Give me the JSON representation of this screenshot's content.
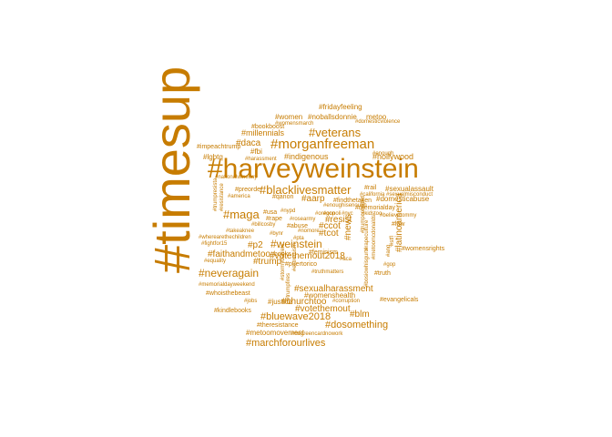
{
  "color": "#c77c00",
  "words": [
    {
      "text": "#timesup",
      "size": 56,
      "rotate": true
    },
    {
      "text": "#harveyweinstein",
      "size": 30
    },
    {
      "text": "#morganfreeman",
      "size": 15
    },
    {
      "text": "#veterans",
      "size": 13
    },
    {
      "text": "#blacklivesmatter",
      "size": 13
    },
    {
      "text": "#maga",
      "size": 13
    },
    {
      "text": "#weinstein",
      "size": 12
    },
    {
      "text": "#neveragain",
      "size": 12
    },
    {
      "text": "#bluewave2018",
      "size": 11
    },
    {
      "text": "#marchforourlives",
      "size": 11
    },
    {
      "text": "#dosomething",
      "size": 11
    },
    {
      "text": "#votethemout",
      "size": 10
    },
    {
      "text": "#blm",
      "size": 10
    },
    {
      "text": "#churchtoo",
      "size": 10
    },
    {
      "text": "#votethemout2018",
      "size": 10
    },
    {
      "text": "#sexualharassment",
      "size": 10
    },
    {
      "text": "#faithandmetoo",
      "size": 10
    },
    {
      "text": "#trump",
      "size": 10
    },
    {
      "text": "#p2",
      "size": 10
    },
    {
      "text": "#news",
      "size": 10,
      "rotate": true
    },
    {
      "text": "#latinoamerica",
      "size": 10,
      "rotate": true
    },
    {
      "text": "#resist",
      "size": 10
    },
    {
      "text": "#tcot",
      "size": 10
    },
    {
      "text": "#ccot",
      "size": 10
    },
    {
      "text": "#aarp",
      "size": 10
    },
    {
      "text": "#daca",
      "size": 10
    },
    {
      "text": "#millennials",
      "size": 9
    },
    {
      "text": "#indigenous",
      "size": 9
    },
    {
      "text": "#hollywood",
      "size": 9
    },
    {
      "text": "#fridayfeeling",
      "size": 8
    },
    {
      "text": "#noballsdonnie",
      "size": 8
    },
    {
      "text": "#women",
      "size": 8
    },
    {
      "text": "metoo",
      "size": 8
    },
    {
      "text": "#fbi",
      "size": 8
    },
    {
      "text": "#lgbtq",
      "size": 8
    },
    {
      "text": "#sexualassault",
      "size": 8
    },
    {
      "text": "#domesticabuse",
      "size": 8
    },
    {
      "text": "#womenshealth",
      "size": 8
    },
    {
      "text": "#justice",
      "size": 8
    },
    {
      "text": "#whoisthebeast",
      "size": 7
    },
    {
      "text": "#evangelicals",
      "size": 7
    },
    {
      "text": "#metoomovement",
      "size": 8
    },
    {
      "text": "#law",
      "size": 7
    },
    {
      "text": "#womensrights",
      "size": 7
    },
    {
      "text": "#truth",
      "size": 7
    },
    {
      "text": "#gop",
      "size": 6
    },
    {
      "text": "#rail",
      "size": 7
    },
    {
      "text": "#preorder",
      "size": 7
    },
    {
      "text": "#findthetaken",
      "size": 7
    },
    {
      "text": "#memorialday",
      "size": 7
    },
    {
      "text": "#puertorico",
      "size": 7
    },
    {
      "text": "#feminism",
      "size": 7
    },
    {
      "text": "#books",
      "size": 7
    },
    {
      "text": "#aca",
      "size": 6
    },
    {
      "text": "#truthmatters",
      "size": 6
    },
    {
      "text": "#corruption",
      "size": 6
    },
    {
      "text": "#kindlebooks",
      "size": 7
    },
    {
      "text": "#theresistance",
      "size": 7
    },
    {
      "text": "#nogreencardnowork",
      "size": 6
    },
    {
      "text": "#memorialdayweekend",
      "size": 6
    },
    {
      "text": "#jobs",
      "size": 6
    },
    {
      "text": "#bookboost",
      "size": 7
    },
    {
      "text": "#impeachtrump",
      "size": 7
    },
    {
      "text": "#harassment",
      "size": 6
    },
    {
      "text": "#enough",
      "size": 6
    },
    {
      "text": "#womensmarch",
      "size": 6
    },
    {
      "text": "#domesticviolence",
      "size": 6
    },
    {
      "text": "#nationalwineday",
      "size": 6
    },
    {
      "text": "#enoughisenough",
      "size": 6
    },
    {
      "text": "#qanon",
      "size": 7
    },
    {
      "text": "#america",
      "size": 6
    },
    {
      "text": "#usa",
      "size": 7
    },
    {
      "text": "#nypd",
      "size": 6
    },
    {
      "text": "#rape",
      "size": 7
    },
    {
      "text": "#rosearmy",
      "size": 6
    },
    {
      "text": "#oregon",
      "size": 6
    },
    {
      "text": "#abuse",
      "size": 7
    },
    {
      "text": "#billcosby",
      "size": 6
    },
    {
      "text": "#takeaknee",
      "size": 6
    },
    {
      "text": "#wherearethechildren",
      "size": 6
    },
    {
      "text": "#fightfor15",
      "size": 6
    },
    {
      "text": "#equality",
      "size": 6
    },
    {
      "text": "#bynr",
      "size": 6
    },
    {
      "text": "#pta",
      "size": 6
    },
    {
      "text": "#nomore",
      "size": 6
    },
    {
      "text": "#california",
      "size": 6
    },
    {
      "text": "#sexualmisconduct",
      "size": 6
    },
    {
      "text": "#nyc",
      "size": 6
    },
    {
      "text": "#kidstoo",
      "size": 6
    },
    {
      "text": "#believetommy",
      "size": 6
    },
    {
      "text": "#onpoli",
      "size": 6
    },
    {
      "text": "#trumpresista",
      "size": 6,
      "rotate": true
    },
    {
      "text": "#resistance",
      "size": 6,
      "rotate": true
    },
    {
      "text": "#trumpcolluded",
      "size": 6,
      "rotate": true
    },
    {
      "text": "#rapeculture",
      "size": 6,
      "rotate": true
    },
    {
      "text": "#stormydaniels",
      "size": 6,
      "rotate": true
    },
    {
      "text": "#trumpfires",
      "size": 6,
      "rotate": true
    },
    {
      "text": "#extremism",
      "size": 6,
      "rotate": true
    },
    {
      "text": "#metoomcdonalds",
      "size": 6,
      "rotate": true
    },
    {
      "text": "#bosiowhisgurts",
      "size": 6,
      "rotate": true
    },
    {
      "text": "#stfl",
      "size": 6,
      "rotate": true
    },
    {
      "text": "#ang",
      "size": 6,
      "rotate": true
    }
  ]
}
